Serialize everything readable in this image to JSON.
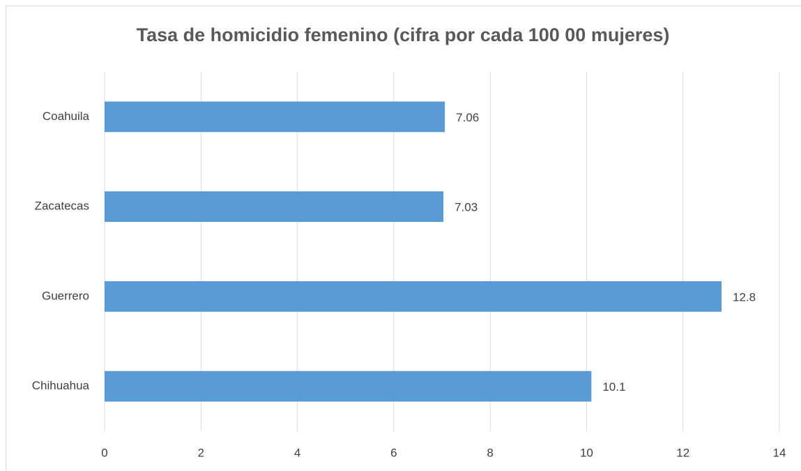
{
  "chart_data": {
    "type": "bar",
    "orientation": "horizontal",
    "title": "Tasa de homicidio femenino (cifra por cada 100 00 mujeres)",
    "categories": [
      "Coahuila",
      "Zacatecas",
      "Guerrero",
      "Chihuahua"
    ],
    "values": [
      7.06,
      7.03,
      12.8,
      10.1
    ],
    "color": "#5b9bd5",
    "xlim": [
      0,
      14
    ],
    "xticks": [
      0,
      2,
      4,
      6,
      8,
      10,
      12,
      14
    ],
    "grid": true
  }
}
